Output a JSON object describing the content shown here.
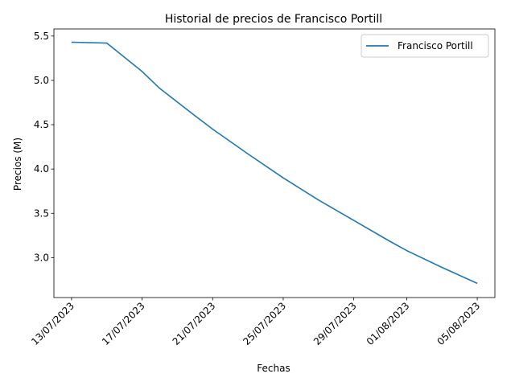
{
  "chart_data": {
    "type": "line",
    "title": "Historial de precios de Francisco Portill",
    "xlabel": "Fechas",
    "ylabel": "Precios (M)",
    "ylim": [
      2.55,
      5.58
    ],
    "yticks": [
      3.0,
      3.5,
      4.0,
      4.5,
      5.0,
      5.5
    ],
    "ytick_labels": [
      "3.0",
      "3.5",
      "4.0",
      "4.5",
      "5.0",
      "5.5"
    ],
    "xlim": [
      "2023-07-12",
      "2023-08-06"
    ],
    "xticks": [
      "2023-07-13",
      "2023-07-17",
      "2023-07-21",
      "2023-07-25",
      "2023-07-29",
      "2023-08-01",
      "2023-08-05"
    ],
    "xtick_labels": [
      "13/07/2023",
      "17/07/2023",
      "21/07/2023",
      "25/07/2023",
      "29/07/2023",
      "01/08/2023",
      "05/08/2023"
    ],
    "legend_position": "top-right",
    "grid": false,
    "series": [
      {
        "name": "Francisco Portill",
        "color": "#1f77b4",
        "x": [
          "2023-07-13",
          "2023-07-15",
          "2023-07-17",
          "2023-07-18",
          "2023-07-20",
          "2023-07-21",
          "2023-07-23",
          "2023-07-25",
          "2023-07-27",
          "2023-07-29",
          "2023-07-31",
          "2023-08-01",
          "2023-08-03",
          "2023-08-05"
        ],
        "y": [
          5.43,
          5.42,
          5.1,
          4.91,
          4.6,
          4.45,
          4.17,
          3.9,
          3.65,
          3.42,
          3.19,
          3.08,
          2.89,
          2.71
        ]
      }
    ]
  }
}
